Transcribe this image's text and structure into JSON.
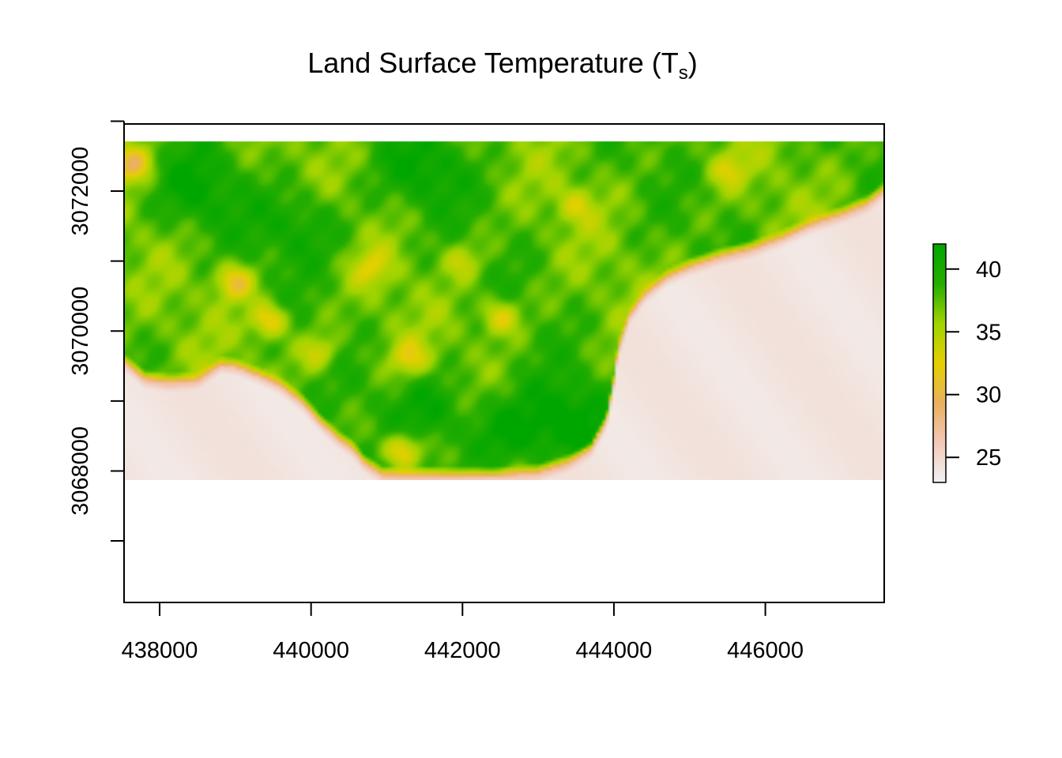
{
  "chart_data": {
    "type": "heatmap",
    "title": "Land Surface Temperature (T",
    "title_subscript": "s",
    "title_close": ")",
    "xlabel": "",
    "ylabel": "",
    "x_ticks": [
      {
        "value": 438000,
        "label": "438000"
      },
      {
        "value": 440000,
        "label": "440000"
      },
      {
        "value": 442000,
        "label": "442000"
      },
      {
        "value": 444000,
        "label": "444000"
      },
      {
        "value": 446000,
        "label": "446000"
      }
    ],
    "y_ticks": [
      {
        "value": 3067000,
        "label": ""
      },
      {
        "value": 3068000,
        "label": "3068000"
      },
      {
        "value": 3069000,
        "label": ""
      },
      {
        "value": 3070000,
        "label": "3070000"
      },
      {
        "value": 3071000,
        "label": ""
      },
      {
        "value": 3072000,
        "label": "3072000"
      },
      {
        "value": 3073000,
        "label": ""
      }
    ],
    "xlim": [
      437530,
      447570
    ],
    "ylim": [
      3066120,
      3072960
    ],
    "raster_extent": {
      "x": [
        437530,
        447570
      ],
      "y": [
        3067870,
        3072710
      ]
    },
    "value_range": [
      23,
      42
    ],
    "legend": {
      "position": "right",
      "ticks": [
        {
          "value": 25,
          "label": "25"
        },
        {
          "value": 30,
          "label": "30"
        },
        {
          "value": 35,
          "label": "35"
        },
        {
          "value": 40,
          "label": "40"
        }
      ]
    },
    "colormap": [
      "#f2f2f2",
      "#f3c8b8",
      "#ebb05d",
      "#e5d000",
      "#a0d400",
      "#25ad00",
      "#00a600"
    ],
    "mask_threshold": 30,
    "regions": {
      "land_mean": 37.5,
      "ocean_mean": 24.0,
      "coastline": [
        [
          437530,
          3069540
        ],
        [
          437800,
          3069300
        ],
        [
          438100,
          3069250
        ],
        [
          438500,
          3069280
        ],
        [
          438800,
          3069500
        ],
        [
          439000,
          3069480
        ],
        [
          439300,
          3069350
        ],
        [
          439600,
          3069200
        ],
        [
          439900,
          3068950
        ],
        [
          440100,
          3068700
        ],
        [
          440350,
          3068450
        ],
        [
          440550,
          3068300
        ],
        [
          440700,
          3068100
        ],
        [
          440950,
          3067930
        ],
        [
          441200,
          3067920
        ],
        [
          441600,
          3067920
        ],
        [
          442000,
          3067910
        ],
        [
          442500,
          3067920
        ],
        [
          443000,
          3067960
        ],
        [
          443400,
          3068100
        ],
        [
          443700,
          3068300
        ],
        [
          443900,
          3068700
        ],
        [
          443990,
          3069200
        ],
        [
          444050,
          3069700
        ],
        [
          444200,
          3070200
        ],
        [
          444400,
          3070500
        ],
        [
          444700,
          3070750
        ],
        [
          445000,
          3070900
        ],
        [
          445400,
          3071050
        ],
        [
          445800,
          3071150
        ],
        [
          446200,
          3071300
        ],
        [
          446600,
          3071500
        ],
        [
          447000,
          3071650
        ],
        [
          447350,
          3071800
        ],
        [
          447570,
          3072000
        ]
      ],
      "hot_spots": [
        {
          "x": 439000,
          "y": 3070700,
          "temp": 31
        },
        {
          "x": 439450,
          "y": 3070150,
          "temp": 31
        },
        {
          "x": 437650,
          "y": 3072400,
          "temp": 31
        },
        {
          "x": 441200,
          "y": 3068300,
          "temp": 30
        },
        {
          "x": 441300,
          "y": 3069600,
          "temp": 33
        },
        {
          "x": 442500,
          "y": 3070200,
          "temp": 32
        },
        {
          "x": 440100,
          "y": 3069700,
          "temp": 33
        },
        {
          "x": 440800,
          "y": 3070900,
          "temp": 34
        },
        {
          "x": 442000,
          "y": 3071000,
          "temp": 34
        },
        {
          "x": 443500,
          "y": 3071800,
          "temp": 34
        },
        {
          "x": 445500,
          "y": 3072300,
          "temp": 34
        }
      ],
      "cool_spots": [
        {
          "x": 442600,
          "y": 3068500,
          "temp": 42
        },
        {
          "x": 443400,
          "y": 3068700,
          "temp": 42
        },
        {
          "x": 438500,
          "y": 3072000,
          "temp": 41
        },
        {
          "x": 439900,
          "y": 3071500,
          "temp": 41
        },
        {
          "x": 441500,
          "y": 3072300,
          "temp": 41
        },
        {
          "x": 441600,
          "y": 3068900,
          "temp": 41
        }
      ]
    }
  }
}
